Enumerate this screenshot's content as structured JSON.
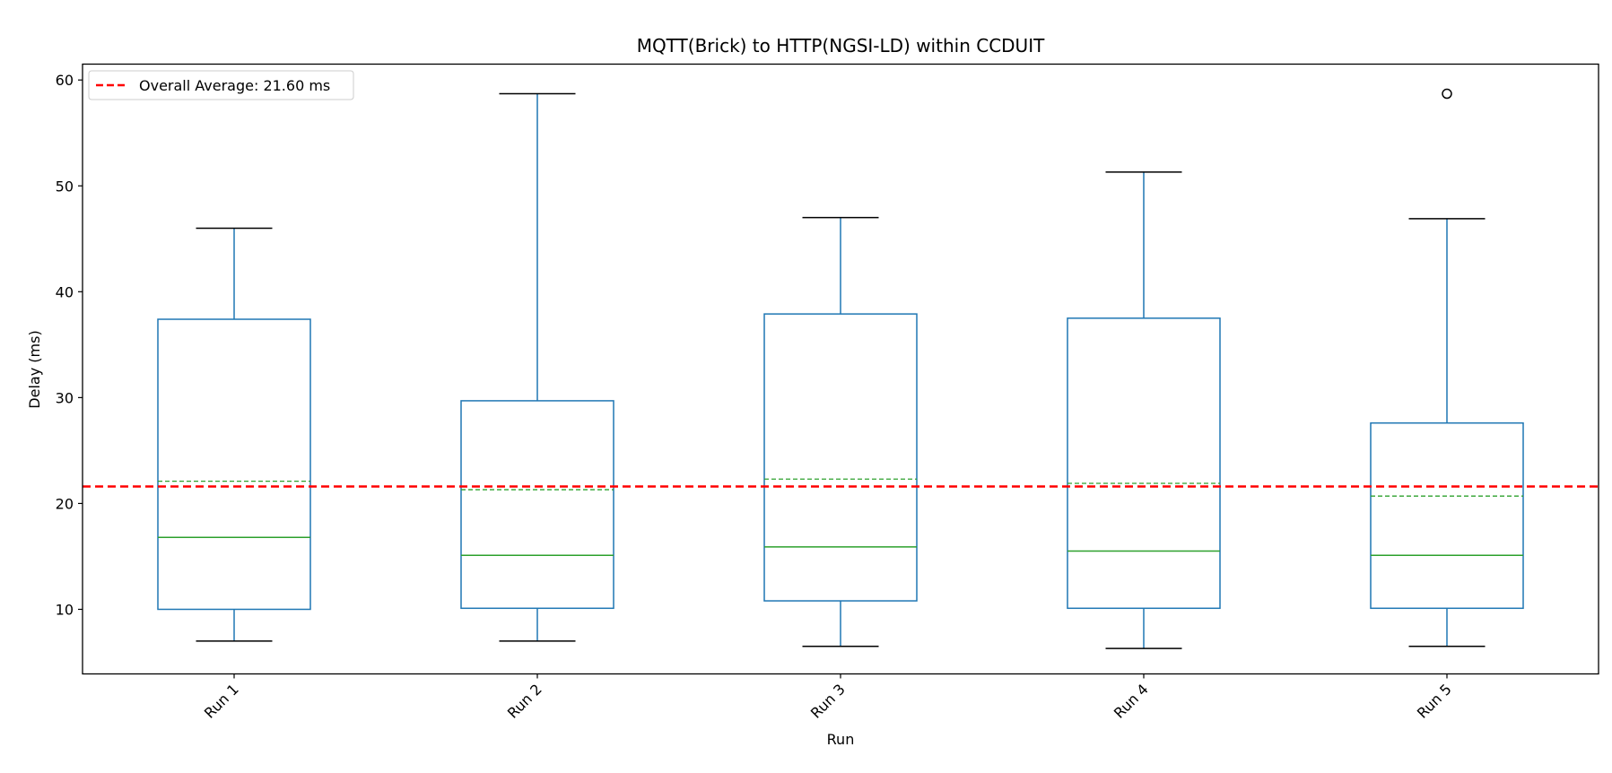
{
  "chart_data": {
    "type": "box",
    "title": "MQTT(Brick) to HTTP(NGSI-LD) within CCDUIT",
    "xlabel": "Run",
    "ylabel": "Delay (ms)",
    "ylim": [
      3.9,
      61.5
    ],
    "yticks": [
      10,
      20,
      30,
      40,
      50,
      60
    ],
    "categories": [
      "Run 1",
      "Run 2",
      "Run 3",
      "Run 4",
      "Run 5"
    ],
    "boxes": [
      {
        "label": "Run 1",
        "whisker_low": 7.0,
        "q1": 10.0,
        "median": 16.8,
        "mean": 22.1,
        "q3": 37.4,
        "whisker_high": 46.0,
        "outliers": []
      },
      {
        "label": "Run 2",
        "whisker_low": 7.0,
        "q1": 10.1,
        "median": 15.1,
        "mean": 21.3,
        "q3": 29.7,
        "whisker_high": 58.7,
        "outliers": []
      },
      {
        "label": "Run 3",
        "whisker_low": 6.5,
        "q1": 10.8,
        "median": 15.9,
        "mean": 22.3,
        "q3": 37.9,
        "whisker_high": 47.0,
        "outliers": []
      },
      {
        "label": "Run 4",
        "whisker_low": 6.3,
        "q1": 10.1,
        "median": 15.5,
        "mean": 21.9,
        "q3": 37.5,
        "whisker_high": 51.3,
        "outliers": []
      },
      {
        "label": "Run 5",
        "whisker_low": 6.5,
        "q1": 10.1,
        "median": 15.1,
        "mean": 20.7,
        "q3": 27.6,
        "whisker_high": 46.9,
        "outliers": [
          58.7
        ]
      }
    ],
    "overall_average": 21.6,
    "legend": {
      "label": "Overall Average: 21.60 ms",
      "placement": "top-left"
    },
    "colors": {
      "box": "#1f77b4",
      "median": "#2ca02c",
      "mean": "#2ca02c",
      "whisker_cap": "#000000",
      "average_line": "#ff0000",
      "axes": "#000000"
    }
  }
}
